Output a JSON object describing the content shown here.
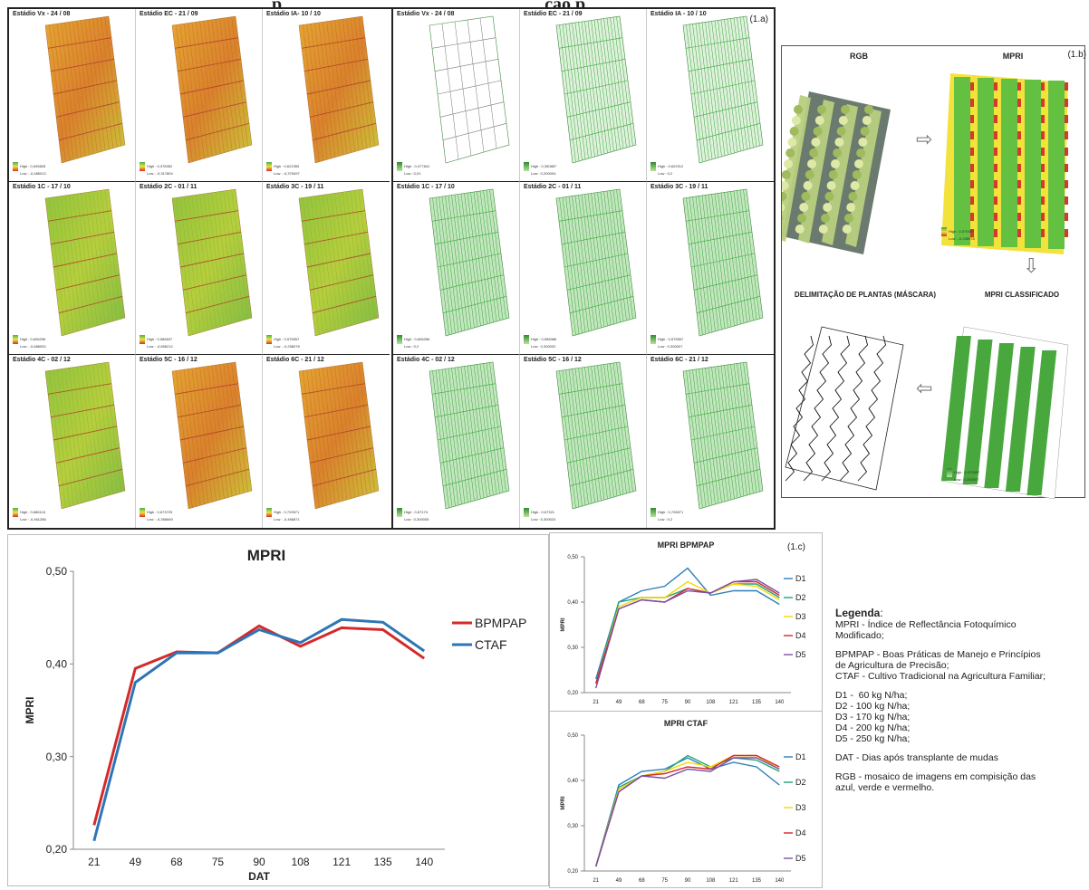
{
  "header_text": "p                                                          ção p",
  "panel_a": {
    "label": "(1.a)",
    "titles": [
      "Estádio Vx - 24 / 08",
      "Estádio EC - 21 / 09",
      "Estádio IA- 10 / 10",
      "Estádio 1C - 17 / 10",
      "Estádio 2C - 01 / 11",
      "Estádio 3C - 19 / 11",
      "Estádio 4C - 02 / 12",
      "Estádio 5C - 16 / 12",
      "Estádio 6C - 21 / 12"
    ],
    "right_titles": [
      "Estádio Vx - 24 / 08",
      "Estádio EC - 21 / 09",
      "Estádio IA - 10 / 10",
      "Estádio 1C - 17 / 10",
      "Estádio 2C - 01 / 11",
      "Estádio 3C - 19 / 11",
      "Estádio 4C - 02 / 12",
      "Estádio 5C - 16 / 12",
      "Estádio 6C - 21 / 12"
    ],
    "left_highs": [
      "High : 0,545828",
      "High : 0,378352",
      "High : 0,622350",
      "High : 0,606256",
      "High : 0,586637",
      "High : 0,575557",
      "High : 0,686124",
      "High : 0,673729",
      "High : 0,729571"
    ],
    "left_lows": [
      "Low : -0,485012",
      "Low : -0,317804",
      "Low : -0,379497",
      "Low : -0,686052",
      "Low : -0,896212",
      "Low : -0,258078",
      "Low : -0,461286",
      "Low : -0,356669",
      "Low : -0,466871"
    ],
    "right_highs": [
      "High : 0,477841",
      "High : 0,350867",
      "High : 0,622012",
      "High : 0,606256",
      "High : 0,558386",
      "High : 0,575557",
      "High : 0,67174",
      "High : 0,67321",
      "High : 0,726571"
    ],
    "right_lows": [
      "Low : 0,01",
      "Low : 0,200004",
      "Low : 0,2",
      "Low : 0,2",
      "Low : 0,300002",
      "Low : 0,300007",
      "Low : 0,300005",
      "Low : 0,300024",
      "Low : 0,2"
    ]
  },
  "panel_b": {
    "label": "(1.b)",
    "rgb_title": "RGB",
    "mpri_title": "MPRI",
    "mask_title": "DELIMITAÇÃO DE PLANTAS (MÁSCARA)",
    "classified_title": "MPRI CLASSIFICADO",
    "mpri_high": "High : 0,575557",
    "mpri_low": "Low : -0,258078",
    "class_high": "High : 0,575557",
    "class_low": "Low : 0,300007"
  },
  "panel_c": {
    "label": "(1.c)"
  },
  "chart_data": [
    {
      "type": "line",
      "title": "MPRI",
      "xlabel": "DAT",
      "ylabel": "MPRI",
      "categories": [
        "21",
        "49",
        "68",
        "75",
        "90",
        "108",
        "121",
        "135",
        "140"
      ],
      "yticks": [
        "0,20",
        "0,30",
        "0,40",
        "0,50"
      ],
      "ylim": [
        0.2,
        0.5
      ],
      "legend": "right",
      "series": [
        {
          "name": "BPMPAP",
          "color": "#d42a2a",
          "values": [
            0.226,
            0.395,
            0.413,
            0.412,
            0.441,
            0.419,
            0.439,
            0.437,
            0.406
          ]
        },
        {
          "name": "CTAF",
          "color": "#2e75b6",
          "values": [
            0.209,
            0.38,
            0.412,
            0.412,
            0.437,
            0.423,
            0.448,
            0.445,
            0.414
          ]
        }
      ]
    },
    {
      "type": "line",
      "title": "MPRI BPMPAP",
      "xlabel": "",
      "ylabel": "MPRI",
      "categories": [
        "21",
        "49",
        "68",
        "75",
        "90",
        "108",
        "121",
        "135",
        "140"
      ],
      "yticks": [
        "0,20",
        "0,30",
        "0,40",
        "0,50"
      ],
      "ylim": [
        0.2,
        0.5
      ],
      "legend": "right",
      "series": [
        {
          "name": "D1",
          "color": "#2c7fb8",
          "values": [
            0.23,
            0.4,
            0.425,
            0.435,
            0.475,
            0.415,
            0.425,
            0.425,
            0.395
          ]
        },
        {
          "name": "D2",
          "color": "#1aa67a",
          "values": [
            0.22,
            0.4,
            0.41,
            0.41,
            0.43,
            0.42,
            0.44,
            0.44,
            0.41
          ]
        },
        {
          "name": "D3",
          "color": "#f5d800",
          "values": [
            0.22,
            0.39,
            0.41,
            0.41,
            0.445,
            0.42,
            0.44,
            0.435,
            0.405
          ]
        },
        {
          "name": "D4",
          "color": "#d62728",
          "values": [
            0.22,
            0.385,
            0.405,
            0.4,
            0.43,
            0.42,
            0.445,
            0.445,
            0.415
          ]
        },
        {
          "name": "D5",
          "color": "#7b4fa6",
          "values": [
            0.21,
            0.385,
            0.405,
            0.4,
            0.425,
            0.42,
            0.445,
            0.45,
            0.42
          ]
        }
      ]
    },
    {
      "type": "line",
      "title": "MPRI CTAF",
      "xlabel": "",
      "ylabel": "MPRI",
      "categories": [
        "21",
        "49",
        "68",
        "75",
        "90",
        "108",
        "121",
        "135",
        "140"
      ],
      "yticks": [
        "0,20",
        "0,30",
        "0,40",
        "0,50"
      ],
      "ylim": [
        0.2,
        0.5
      ],
      "legend": "right",
      "series": [
        {
          "name": "D1",
          "color": "#2c7fb8",
          "values": [
            0.21,
            0.39,
            0.42,
            0.425,
            0.45,
            0.425,
            0.44,
            0.43,
            0.39
          ]
        },
        {
          "name": "D2",
          "color": "#1aa67a",
          "values": [
            0.21,
            0.385,
            0.41,
            0.42,
            0.455,
            0.43,
            0.45,
            0.445,
            0.42
          ]
        },
        {
          "name": "D3",
          "color": "#f5d800",
          "values": [
            0.21,
            0.38,
            0.41,
            0.42,
            0.44,
            0.43,
            0.455,
            0.455,
            0.425
          ]
        },
        {
          "name": "D4",
          "color": "#d62728",
          "values": [
            0.21,
            0.375,
            0.41,
            0.415,
            0.43,
            0.425,
            0.455,
            0.455,
            0.43
          ]
        },
        {
          "name": "D5",
          "color": "#7b4fa6",
          "values": [
            0.21,
            0.375,
            0.41,
            0.405,
            0.425,
            0.42,
            0.45,
            0.45,
            0.425
          ]
        }
      ]
    }
  ],
  "legend_block": {
    "title": "Legenda",
    "colon": ":",
    "lines": [
      "MPRI - Índice de Reflectância Fotoquímico",
      "Modificado;",
      "",
      "BPMPAP - Boas Práticas de Manejo e Princípios",
      "de Agricultura de Precisão;",
      "CTAF - Cultivo Tradicional na Agricultura Familiar;",
      "",
      "D1 -  60 kg N/ha;",
      "D2 - 100 kg N/ha;",
      "D3 - 170 kg N/ha;",
      "D4 - 200 kg N/ha;",
      "D5 - 250 kg N/ha;",
      "",
      "DAT - Dias após transplante de mudas",
      "",
      "RGB - mosaico de imagens em compisição das",
      "azul, verde e vermelho."
    ]
  },
  "colors": {
    "orange_field": "#e8a03a",
    "green_field": "#8bc34a",
    "grid_green": "#5fb85a"
  }
}
